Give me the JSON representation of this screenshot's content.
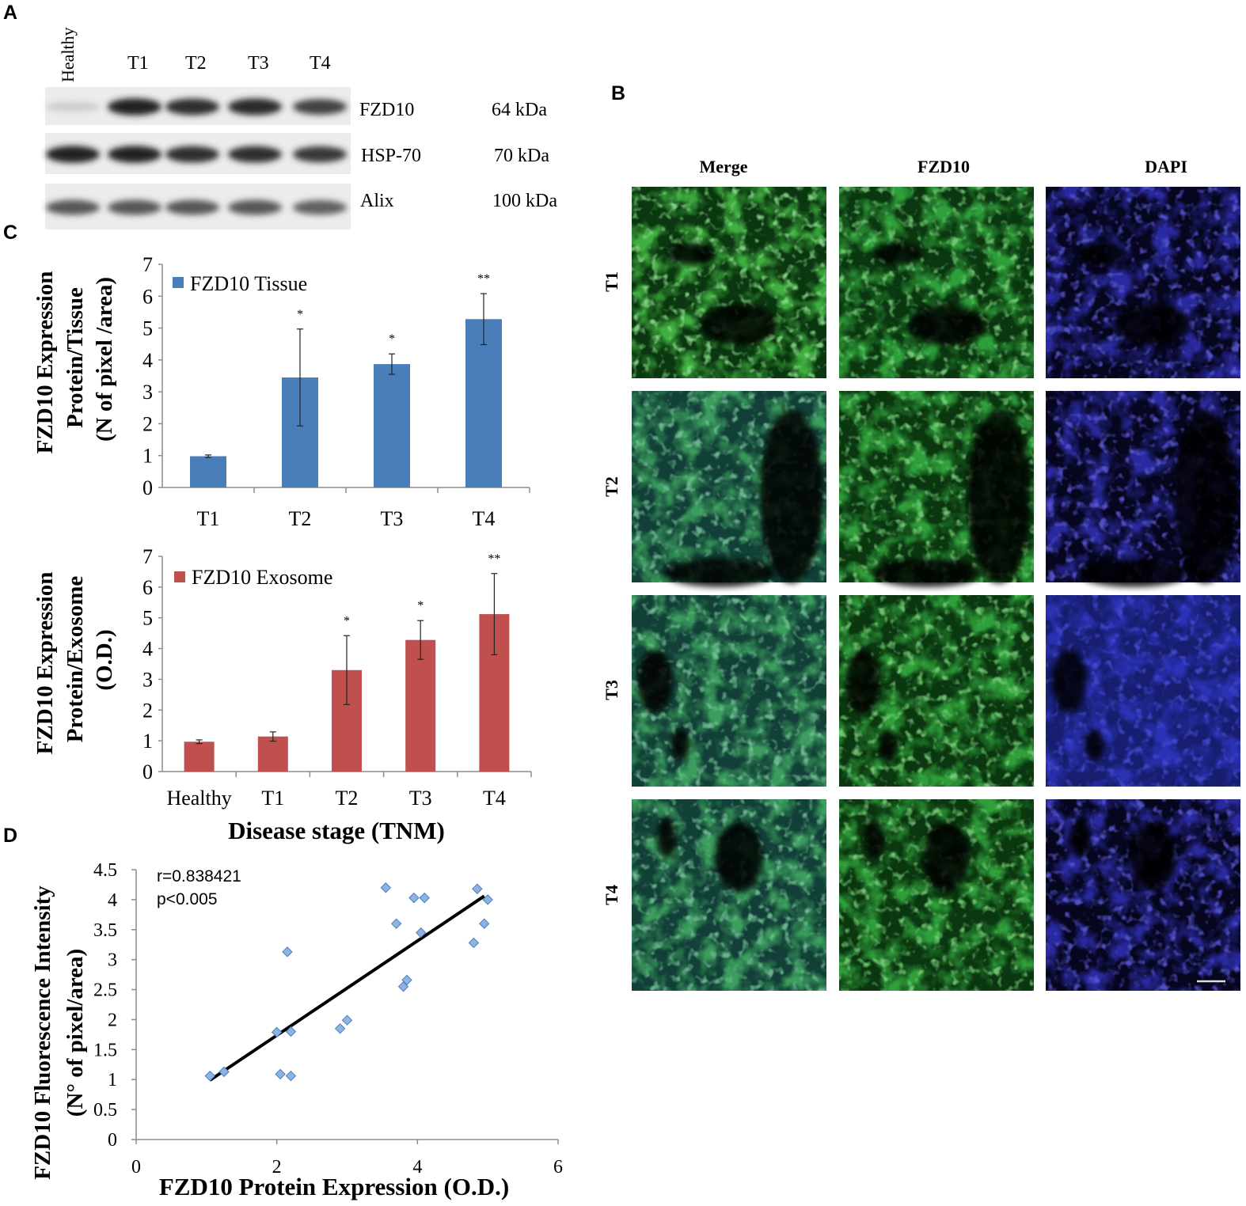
{
  "panels": {
    "a": "A",
    "b": "B",
    "c": "C",
    "d": "D"
  },
  "blot": {
    "lanes": [
      "Healthy",
      "T1",
      "T2",
      "T3",
      "T4"
    ],
    "rows": [
      {
        "protein": "FZD10",
        "weight": "64 kDa",
        "intensities": [
          0.12,
          0.95,
          0.9,
          0.92,
          0.8
        ]
      },
      {
        "protein": "HSP-70",
        "weight": "70 kDa",
        "intensities": [
          0.95,
          0.95,
          0.9,
          0.9,
          0.85
        ]
      },
      {
        "protein": "Alix",
        "weight": "100 kDa",
        "intensities": [
          0.7,
          0.7,
          0.7,
          0.7,
          0.65
        ]
      }
    ]
  },
  "microscopy": {
    "columns": [
      "Merge",
      "FZD10",
      "DAPI"
    ],
    "rows": [
      "T1",
      "T2",
      "T3",
      "T4"
    ]
  },
  "chart_data": [
    {
      "type": "bar",
      "categories": [
        "T1",
        "T2",
        "T3",
        "T4"
      ],
      "series": [
        {
          "name": "FZD10 Tissue",
          "values": [
            0.98,
            3.45,
            3.87,
            5.28
          ],
          "errors": [
            0.04,
            1.52,
            0.32,
            0.8
          ],
          "color": "#4a7ebb"
        }
      ],
      "significance": [
        "",
        "*",
        "*",
        "**"
      ],
      "ylabel_lines": [
        "FZD10 Expression",
        "Protein/Tissue",
        "(N of pixel /area)"
      ],
      "ylim": [
        0,
        7
      ],
      "yticks": [
        "0",
        "1",
        "2",
        "3",
        "4",
        "5",
        "6",
        "7"
      ]
    },
    {
      "type": "bar",
      "categories": [
        "Healthy",
        "T1",
        "T2",
        "T3",
        "T4"
      ],
      "series": [
        {
          "name": "FZD10 Exosome",
          "values": [
            0.97,
            1.14,
            3.3,
            4.28,
            5.12
          ],
          "errors": [
            0.06,
            0.15,
            1.12,
            0.63,
            1.32
          ],
          "color": "#c0504d"
        }
      ],
      "significance": [
        "",
        "",
        "*",
        "*",
        "**"
      ],
      "ylabel_lines": [
        "FZD10 Expression",
        "Protein/Exosome",
        "(O.D.)"
      ],
      "xlabel": "Disease stage (TNM)",
      "ylim": [
        0,
        7
      ],
      "yticks": [
        "0",
        "1",
        "2",
        "3",
        "4",
        "5",
        "6",
        "7"
      ]
    },
    {
      "type": "scatter",
      "annotation": [
        "r=0.838421",
        "p<0.005"
      ],
      "xlabel": "FZD10 Protein Expression (O.D.)",
      "ylabel_lines": [
        "FZD10 Fluorescence Intensity",
        "(N° of pixel/area)"
      ],
      "xlim": [
        0,
        6
      ],
      "ylim": [
        0,
        4.5
      ],
      "xticks": [
        "0",
        "2",
        "4",
        "6"
      ],
      "yticks": [
        "0",
        "0.5",
        "1",
        "1.5",
        "2",
        "2.5",
        "3",
        "3.5",
        "4",
        "4.5"
      ],
      "points": [
        [
          1.05,
          1.06
        ],
        [
          1.25,
          1.13
        ],
        [
          2.0,
          1.79
        ],
        [
          2.15,
          3.13
        ],
        [
          2.2,
          1.8
        ],
        [
          2.05,
          1.09
        ],
        [
          2.2,
          1.06
        ],
        [
          2.9,
          1.85
        ],
        [
          3.0,
          1.99
        ],
        [
          3.55,
          4.2
        ],
        [
          3.7,
          3.6
        ],
        [
          3.8,
          2.55
        ],
        [
          3.85,
          2.66
        ],
        [
          3.95,
          4.03
        ],
        [
          4.1,
          4.03
        ],
        [
          4.05,
          3.45
        ],
        [
          4.8,
          3.28
        ],
        [
          4.85,
          4.18
        ],
        [
          5.0,
          4.0
        ],
        [
          4.95,
          3.6
        ]
      ],
      "trendline": [
        [
          1.05,
          0.99
        ],
        [
          4.95,
          4.06
        ]
      ]
    }
  ]
}
